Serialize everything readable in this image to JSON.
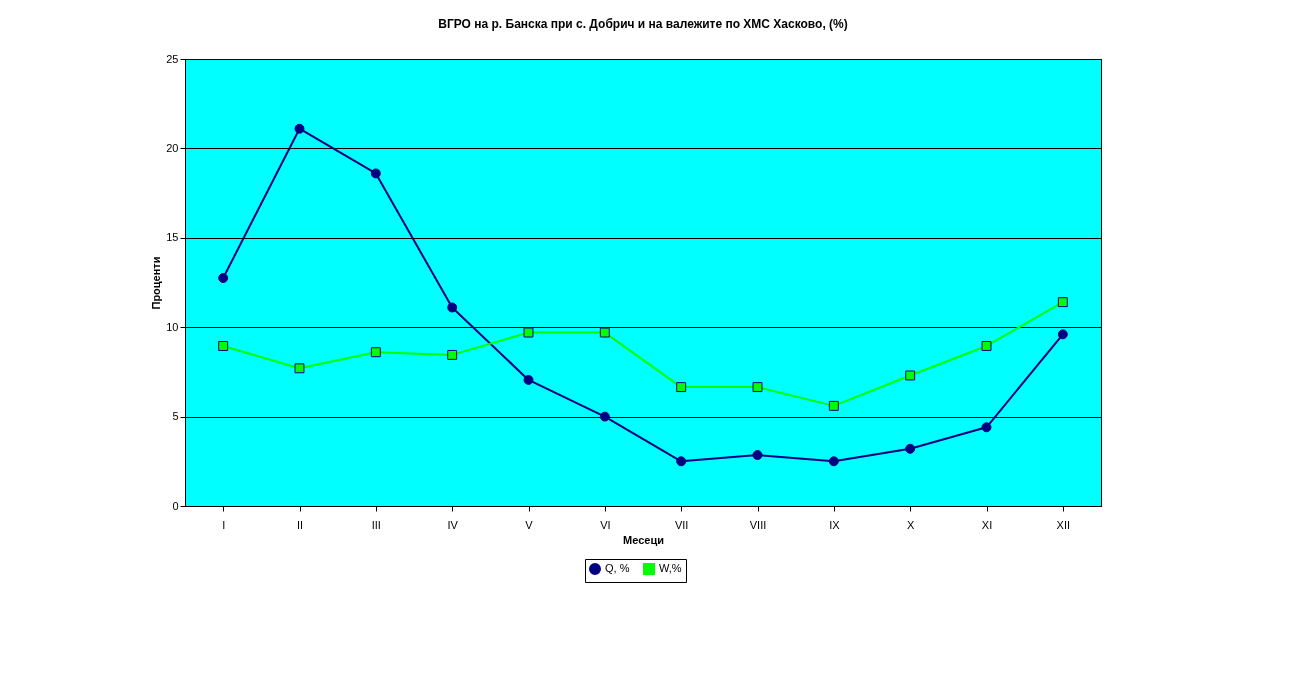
{
  "chart_data": {
    "type": "line",
    "title": "ВГРО  на р. Банска при с. Добрич и на валежите по ХМС Хасково, (%)",
    "xlabel": "Месеци",
    "ylabel": "Проценти",
    "categories": [
      "I",
      "II",
      "III",
      "IV",
      "V",
      "VI",
      "VII",
      "VIII",
      "IX",
      "X",
      "XI",
      "XII"
    ],
    "series": [
      {
        "name": "Q, %",
        "color": "#000080",
        "marker": "circle",
        "values": [
          12.75,
          21.1,
          18.6,
          11.1,
          7.05,
          5.0,
          2.5,
          2.85,
          2.5,
          3.2,
          4.4,
          9.6
        ]
      },
      {
        "name": "W,%",
        "color": "#00ff00",
        "marker": "square",
        "values": [
          8.95,
          7.7,
          8.6,
          8.45,
          9.7,
          9.7,
          6.65,
          6.65,
          5.6,
          7.3,
          8.95,
          11.4
        ]
      }
    ],
    "ylim": [
      0,
      25
    ],
    "yticks": [
      0,
      5,
      10,
      15,
      20,
      25
    ],
    "grid": "y",
    "legend": "bottom",
    "line_style": "solid"
  }
}
